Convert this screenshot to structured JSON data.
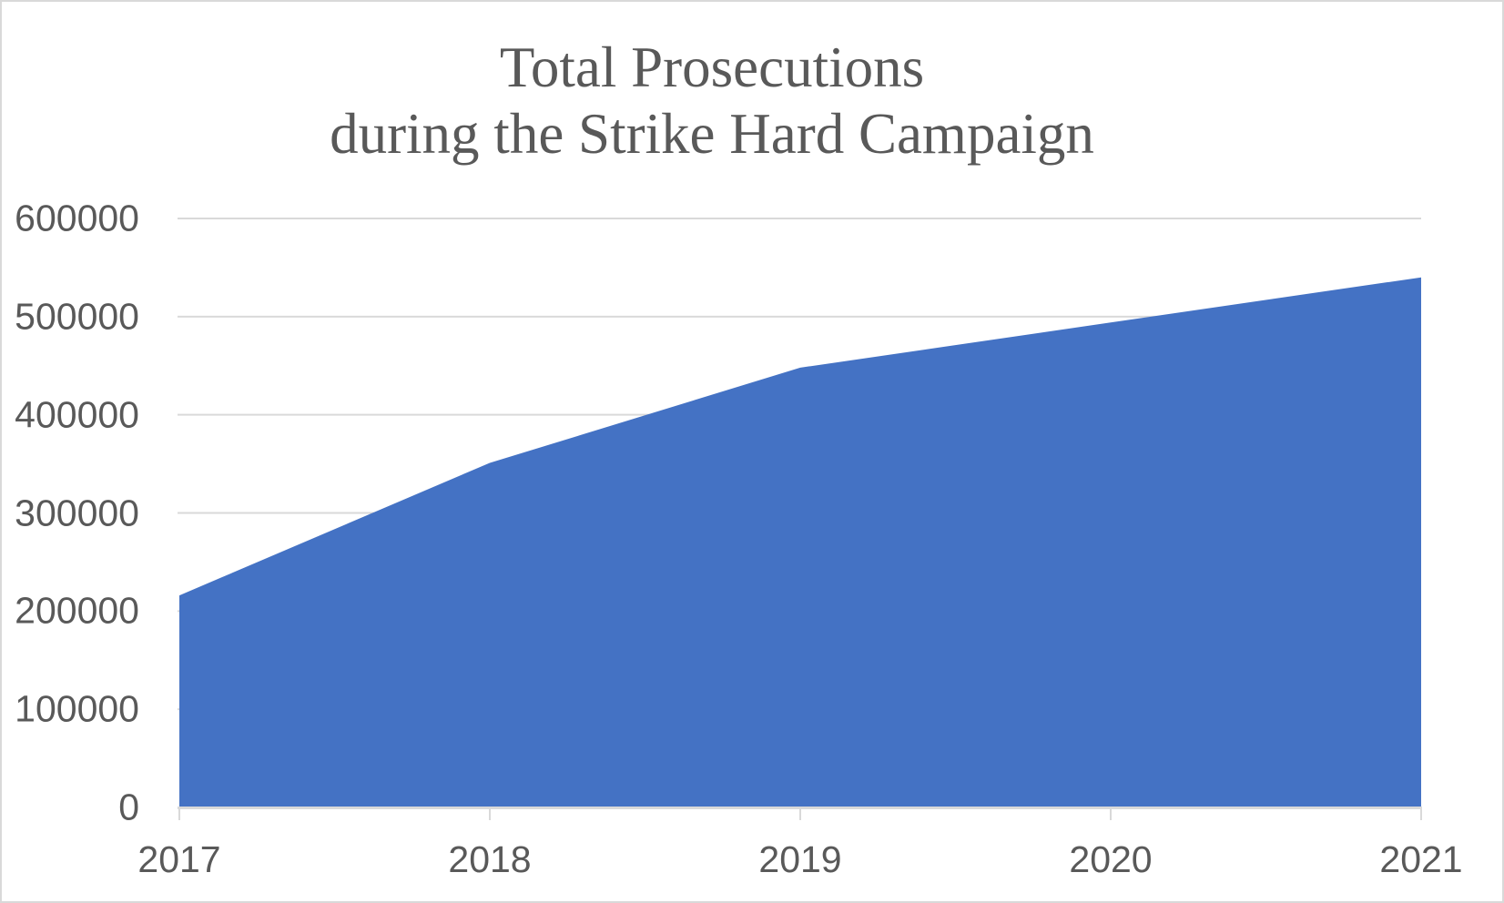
{
  "chart_data": {
    "type": "area",
    "title_lines": [
      "Total Prosecutions",
      "during the Strike Hard Campaign"
    ],
    "categories": [
      "2017",
      "2018",
      "2019",
      "2020",
      "2021"
    ],
    "series": [
      {
        "name": "Total Prosecutions",
        "values": [
          216000,
          351000,
          448000,
          494000,
          540000
        ]
      }
    ],
    "xlabel": "",
    "ylabel": "",
    "ylim": [
      0,
      600000
    ],
    "yticks": [
      0,
      100000,
      200000,
      300000,
      400000,
      500000,
      600000
    ],
    "ytick_labels": [
      "0",
      "100000",
      "200000",
      "300000",
      "400000",
      "500000",
      "600000"
    ],
    "grid": true,
    "legend": "none",
    "colors": {
      "area_fill": "#4472c4",
      "gridline": "#d9d9d9",
      "axis_line": "#d9d9d9",
      "tick_mark": "#d9d9d9",
      "text": "#595959",
      "background": "#ffffff",
      "frame_border": "#d9d9d9"
    }
  }
}
